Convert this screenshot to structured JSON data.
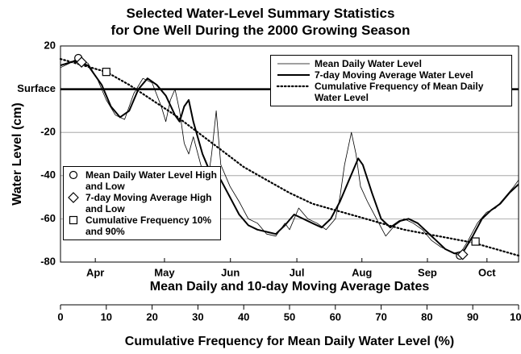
{
  "chart_data": {
    "type": "line",
    "title": "Selected Water-Level Summary Statistics\nfor One Well During the 2000 Growing Season",
    "y_label": "Water Level (cm)",
    "x_label_dates": "Mean Daily and 10-day Moving Average Dates",
    "x_label": "Cumulative Frequency for Mean Daily Water Level (%)",
    "xlim": [
      0,
      100
    ],
    "xticks": [
      0,
      10,
      20,
      30,
      40,
      50,
      60,
      70,
      80,
      90,
      100
    ],
    "date_ticks": [
      {
        "value": 7.6,
        "label": "Apr"
      },
      {
        "value": 22.7,
        "label": "May"
      },
      {
        "value": 37.1,
        "label": "Jun"
      },
      {
        "value": 51.6,
        "label": "Jul"
      },
      {
        "value": 65.8,
        "label": "Aug"
      },
      {
        "value": 80.1,
        "label": "Sep"
      },
      {
        "value": 93.1,
        "label": "Oct"
      }
    ],
    "ylim": [
      -80,
      20
    ],
    "yticks": [
      20,
      {
        "value": 0,
        "label": "Surface"
      },
      -20,
      -40,
      -60,
      -80
    ],
    "grid": true,
    "series": [
      {
        "name": "Mean Daily Water Level",
        "color": "#000",
        "style": "thin",
        "x": [
          0,
          2,
          3.5,
          6,
          8,
          10,
          12,
          14,
          16,
          18,
          20,
          22,
          23,
          24,
          25,
          26,
          27,
          28,
          29,
          30,
          31,
          32,
          33,
          34,
          35,
          37,
          39,
          41,
          43,
          45,
          47,
          49,
          50,
          52,
          54,
          56,
          58,
          60,
          61,
          62,
          63.5,
          64.5,
          65.5,
          67,
          69,
          71,
          73,
          75,
          77,
          79,
          81,
          83,
          85,
          87,
          89,
          91,
          93,
          95,
          97,
          99,
          100
        ],
        "values": [
          10,
          12,
          14,
          12,
          5,
          -5,
          -12,
          -14,
          -2,
          5,
          3,
          -8,
          -15,
          -5,
          0,
          -10,
          -25,
          -30,
          -22,
          -30,
          -38,
          -45,
          -30,
          -10,
          -35,
          -45,
          -52,
          -60,
          -62,
          -67,
          -68,
          -62,
          -65,
          -55,
          -60,
          -62,
          -65,
          -60,
          -50,
          -35,
          -20,
          -30,
          -45,
          -52,
          -60,
          -68,
          -63,
          -60,
          -62,
          -65,
          -70,
          -73,
          -75,
          -77,
          -70,
          -62,
          -57,
          -55,
          -50,
          -45,
          -42
        ]
      },
      {
        "name": "7-day Moving Average Water Level",
        "color": "#000",
        "style": "thick",
        "x": [
          0,
          3,
          6,
          9,
          11,
          13,
          15,
          17,
          19,
          21,
          23,
          25,
          26,
          27,
          28,
          29,
          31,
          33,
          35,
          37,
          39,
          41,
          43,
          45,
          47,
          49,
          51,
          53,
          55,
          57,
          59,
          61,
          63,
          65,
          66,
          68,
          70,
          72,
          74,
          76,
          78,
          80,
          82,
          84,
          86,
          88,
          90,
          92,
          94,
          96,
          98,
          100
        ],
        "values": [
          11,
          13,
          11,
          2,
          -8,
          -13,
          -10,
          0,
          5,
          2,
          -3,
          -12,
          -15,
          -8,
          -5,
          -15,
          -30,
          -40,
          -42,
          -50,
          -58,
          -63,
          -65,
          -66,
          -67,
          -63,
          -58,
          -60,
          -62,
          -64,
          -60,
          -52,
          -42,
          -32,
          -35,
          -48,
          -60,
          -64,
          -61,
          -60,
          -62,
          -66,
          -70,
          -74,
          -76,
          -75,
          -68,
          -60,
          -56,
          -53,
          -48,
          -44
        ]
      },
      {
        "name": "Cumulative Frequency of Mean Daily Water Level",
        "color": "#000",
        "style": "dotted",
        "x": [
          0,
          5,
          10,
          15,
          20,
          25,
          30,
          35,
          40,
          45,
          50,
          55,
          60,
          65,
          70,
          75,
          80,
          85,
          90,
          95,
          100
        ],
        "values": [
          14,
          11,
          8,
          2,
          -5,
          -12,
          -20,
          -28,
          -36,
          -42,
          -48,
          -53,
          -56,
          -59,
          -62,
          -65,
          -67,
          -69,
          -71,
          -74,
          -77
        ]
      }
    ],
    "markers": [
      {
        "name": "Mean Daily Water Level High and Low",
        "shape": "circle",
        "x": [
          3.9,
          87.2
        ],
        "values": [
          14.4,
          -77
        ]
      },
      {
        "name": "7-day Moving Average High and Low",
        "shape": "diamond",
        "x": [
          4.6,
          87.8
        ],
        "values": [
          12.5,
          -76.5
        ]
      },
      {
        "name": "Cumulative Frequency 10% and 90%",
        "shape": "square",
        "x": [
          10,
          90.6
        ],
        "values": [
          8,
          -70.5
        ]
      }
    ]
  }
}
